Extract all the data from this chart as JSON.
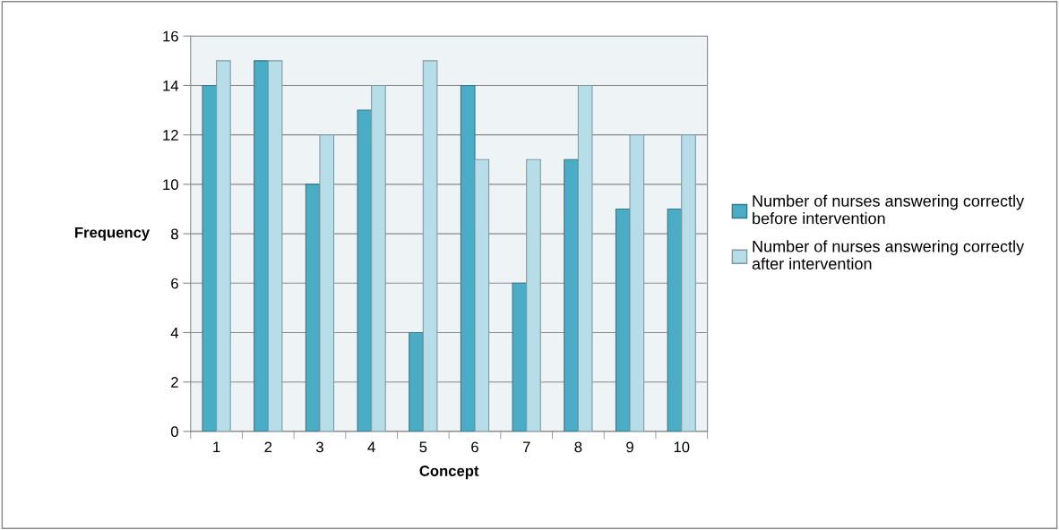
{
  "chart_data": {
    "type": "bar",
    "xlabel": "Concept",
    "ylabel": "Frequency",
    "categories": [
      "1",
      "2",
      "3",
      "4",
      "5",
      "6",
      "7",
      "8",
      "9",
      "10"
    ],
    "series": [
      {
        "name": "Number of nurses answering correctly before intervention",
        "color": "#4bacc6",
        "values": [
          14,
          15,
          10,
          13,
          4,
          14,
          6,
          11,
          9,
          9
        ]
      },
      {
        "name": "Number of nurses answering correctly after intervention",
        "color": "#b7dde8",
        "values": [
          15,
          15,
          12,
          14,
          15,
          11,
          11,
          14,
          12,
          12
        ]
      }
    ],
    "ylim": [
      0,
      16
    ],
    "yticks": [
      0,
      2,
      4,
      6,
      8,
      10,
      12,
      14,
      16
    ],
    "grid": "y",
    "legend": "right"
  }
}
